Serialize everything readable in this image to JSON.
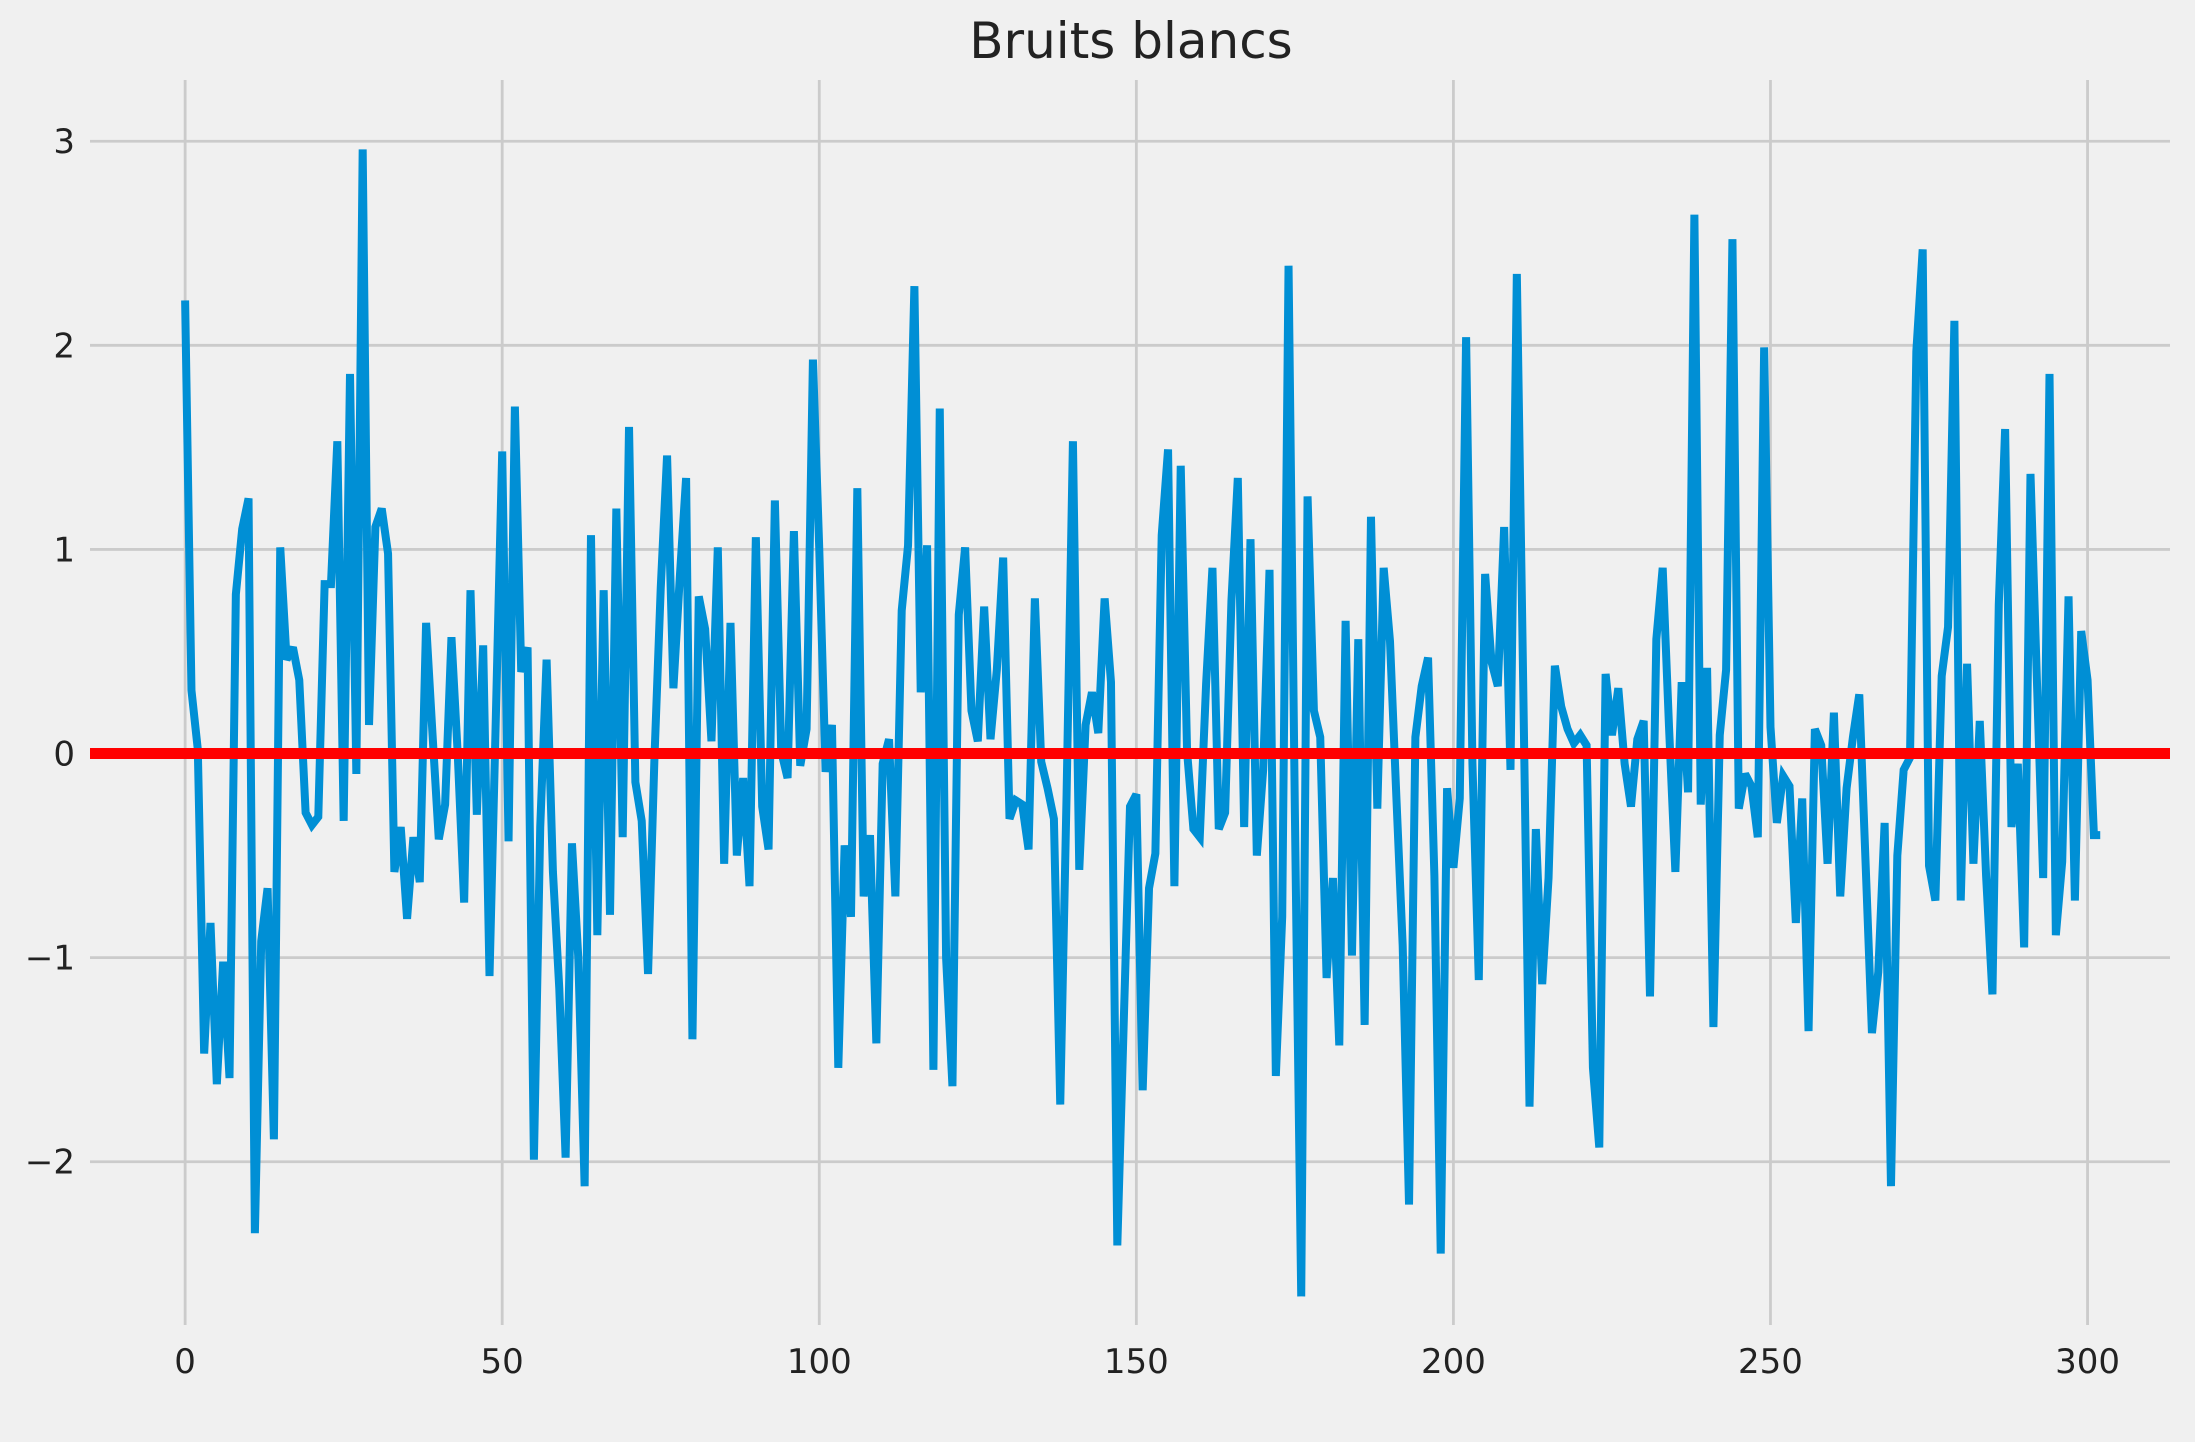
{
  "chart_data": {
    "type": "line",
    "title": "Bruits blancs",
    "xlabel": "",
    "ylabel": "",
    "xlim": [
      -15,
      313
    ],
    "ylim": [
      -2.8,
      3.3
    ],
    "xticks": [
      0,
      50,
      100,
      150,
      200,
      250,
      300
    ],
    "yticks": [
      -2,
      -1,
      0,
      1,
      2,
      3
    ],
    "xtick_labels": [
      "0",
      "50",
      "100",
      "150",
      "200",
      "250",
      "300"
    ],
    "ytick_labels": [
      "−2",
      "−1",
      "0",
      "1",
      "2",
      "3"
    ],
    "grid": true,
    "legend": "none",
    "background": "#f0f0f0",
    "series": [
      {
        "color": "#008fd5",
        "x_start": 0,
        "x_step": 1,
        "values": [
          2.22,
          0.31,
          0.02,
          -1.47,
          -0.83,
          -1.62,
          -1.02,
          -1.59,
          0.78,
          1.1,
          1.25,
          -2.35,
          -0.92,
          -0.66,
          -1.89,
          1.01,
          0.46,
          0.52,
          0.36,
          -0.29,
          -0.35,
          -0.31,
          0.83,
          0.83,
          1.53,
          -0.33,
          1.86,
          -0.1,
          2.96,
          0.14,
          1.11,
          1.2,
          0.98,
          -0.58,
          -0.36,
          -0.81,
          -0.41,
          -0.63,
          0.64,
          0.1,
          -0.42,
          -0.25,
          0.57,
          -0.01,
          -0.73,
          0.8,
          -0.3,
          0.53,
          -1.09,
          0.18,
          1.48,
          -0.43,
          1.7,
          0.4,
          0.52,
          -1.99,
          -0.36,
          0.46,
          -0.58,
          -1.15,
          -1.98,
          -0.44,
          -1.0,
          -2.12,
          1.07,
          -0.89,
          0.8,
          -0.79,
          1.2,
          -0.41,
          1.6,
          -0.14,
          -0.33,
          -1.08,
          -0.03,
          0.81,
          1.46,
          0.32,
          0.86,
          1.35,
          -1.4,
          0.77,
          0.61,
          0.06,
          1.01,
          -0.54,
          0.64,
          -0.5,
          -0.12,
          -0.65,
          1.06,
          -0.26,
          -0.47,
          1.24,
          0.01,
          -0.12,
          1.09,
          -0.06,
          0.12,
          1.93,
          1.0,
          -0.09,
          0.14,
          -1.54,
          -0.45,
          -0.8,
          1.3,
          -0.7,
          -0.4,
          -1.42,
          -0.05,
          0.07,
          -0.7,
          0.7,
          1.02,
          2.29,
          0.3,
          1.02,
          -1.55,
          1.69,
          -1.0,
          -1.63,
          0.68,
          1.01,
          0.21,
          0.06,
          0.72,
          0.07,
          0.41,
          0.96,
          -0.32,
          -0.23,
          -0.25,
          -0.47,
          0.76,
          -0.04,
          -0.17,
          -0.32,
          -1.72,
          -0.2,
          1.53,
          -0.57,
          0.14,
          0.3,
          0.1,
          0.76,
          0.35,
          -2.41,
          -1.33,
          -0.26,
          -0.2,
          -1.65,
          -0.66,
          -0.49,
          1.07,
          1.49,
          -0.65,
          1.41,
          0.01,
          -0.37,
          -0.41,
          0.34,
          0.91,
          -0.37,
          -0.29,
          0.75,
          1.35,
          -0.36,
          1.05,
          -0.5,
          -0.08,
          0.9,
          -1.58,
          -0.8,
          2.39,
          -0.29,
          -2.66,
          1.26,
          0.21,
          0.08,
          -1.1,
          -0.61,
          -1.43,
          0.65,
          -0.99,
          0.56,
          -1.33,
          1.16,
          -0.27,
          0.91,
          0.55,
          -0.21,
          -0.94,
          -2.21,
          0.08,
          0.33,
          0.47,
          -0.6,
          -2.45,
          -0.17,
          -0.56,
          -0.22,
          2.04,
          -0.05,
          -1.11,
          0.88,
          0.45,
          0.33,
          1.11,
          -0.08,
          2.35,
          0.35,
          -1.73,
          -0.37,
          -1.13,
          -0.61,
          0.43,
          0.23,
          0.12,
          0.05,
          0.09,
          0.04,
          -1.54,
          -1.93,
          0.39,
          0.09,
          0.32,
          -0.05,
          -0.26,
          0.07,
          0.16,
          -1.19,
          0.56,
          0.91,
          0.13,
          -0.58,
          0.35,
          -0.19,
          2.64,
          -0.25,
          0.42,
          -1.34,
          0.09,
          0.41,
          2.52,
          -0.27,
          -0.1,
          -0.16,
          -0.41,
          1.99,
          0.13,
          -0.34,
          -0.11,
          -0.16,
          -0.83,
          -0.22,
          -1.36,
          0.12,
          0.04,
          -0.54,
          0.2,
          -0.7,
          -0.17,
          0.08,
          0.29,
          -0.54,
          -1.37,
          -1.07,
          -0.34,
          -2.12,
          -0.5,
          -0.08,
          -0.02,
          1.97,
          2.47,
          -0.55,
          -0.72,
          0.38,
          0.62,
          2.12,
          -0.72,
          0.44,
          -0.54,
          0.16,
          -0.6,
          -1.18,
          0.73,
          1.59,
          -0.36,
          -0.05,
          -0.95,
          1.37,
          0.37,
          -0.61,
          1.86,
          -0.89,
          -0.53,
          0.77,
          -0.72,
          0.6,
          0.36,
          -0.4,
          -0.4
        ]
      },
      {
        "color": "#ff0000",
        "x": [
          -15,
          313
        ],
        "values": [
          0,
          0
        ]
      }
    ]
  }
}
